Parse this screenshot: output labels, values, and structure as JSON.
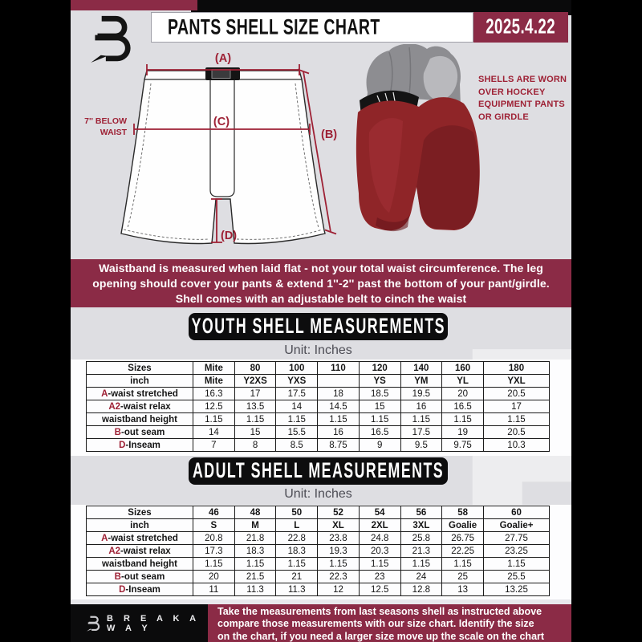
{
  "header": {
    "title": "PANTS SHELL SIZE CHART",
    "date": "2025.4.22"
  },
  "diagram": {
    "label_a": "(A)",
    "label_b": "(B)",
    "label_c": "(C)",
    "label_d": "(D)",
    "below_waist": [
      "7'' BELOW",
      "WAIST"
    ],
    "photo_caption": [
      "SHELLS ARE WORN",
      "OVER HOCKEY",
      "EQUIPMENT PANTS",
      "OR GIRDLE"
    ]
  },
  "notice": {
    "lines": [
      "Waistband is measured when laid flat - not your total waist circumference. The leg",
      "opening should cover your pants & extend 1''-2'' past the bottom of your pant/girdle.",
      "Shell comes with an adjustable belt to cinch the waist"
    ]
  },
  "watermark": "B",
  "youth": {
    "banner": "YOUTH SHELL MEASUREMENTS",
    "unit": "Unit: Inches",
    "table": {
      "rows": [
        {
          "prefix": "",
          "label": "Sizes",
          "bold": true,
          "values": [
            "Mite",
            "80",
            "100",
            "110",
            "120",
            "140",
            "160",
            "180"
          ]
        },
        {
          "prefix": "",
          "label": "inch",
          "bold": true,
          "values": [
            "Mite",
            "Y2XS",
            "YXS",
            "",
            "YS",
            "YM",
            "YL",
            "YXL"
          ]
        },
        {
          "prefix": "A",
          "label": "-waist stretched",
          "bold": false,
          "values": [
            "16.3",
            "17",
            "17.5",
            "18",
            "18.5",
            "19.5",
            "20",
            "20.5"
          ]
        },
        {
          "prefix": "A2",
          "label": "-waist relax",
          "bold": false,
          "values": [
            "12.5",
            "13.5",
            "14",
            "14.5",
            "15",
            "16",
            "16.5",
            "17"
          ]
        },
        {
          "prefix": "",
          "label": "waistband height",
          "bold": false,
          "values": [
            "1.15",
            "1.15",
            "1.15",
            "1.15",
            "1.15",
            "1.15",
            "1.15",
            "1.15"
          ]
        },
        {
          "prefix": "B",
          "label": "-out seam",
          "bold": false,
          "values": [
            "14",
            "15",
            "15.5",
            "16",
            "16.5",
            "17.5",
            "19",
            "20.5"
          ]
        },
        {
          "prefix": "D",
          "label": "-Inseam",
          "bold": false,
          "values": [
            "7",
            "8",
            "8.5",
            "8.75",
            "9",
            "9.5",
            "9.75",
            "10.3"
          ]
        }
      ]
    }
  },
  "adult": {
    "banner": "ADULT SHELL MEASUREMENTS",
    "unit": "Unit: Inches",
    "table": {
      "rows": [
        {
          "prefix": "",
          "label": "Sizes",
          "bold": true,
          "values": [
            "46",
            "48",
            "50",
            "52",
            "54",
            "56",
            "58",
            "60"
          ]
        },
        {
          "prefix": "",
          "label": "inch",
          "bold": true,
          "values": [
            "S",
            "M",
            "L",
            "XL",
            "2XL",
            "3XL",
            "Goalie",
            "Goalie+"
          ]
        },
        {
          "prefix": "A",
          "label": "-waist stretched",
          "bold": false,
          "values": [
            "20.8",
            "21.8",
            "22.8",
            "23.8",
            "24.8",
            "25.8",
            "26.75",
            "27.75"
          ]
        },
        {
          "prefix": "A2",
          "label": "-waist relax",
          "bold": false,
          "values": [
            "17.3",
            "18.3",
            "18.3",
            "19.3",
            "20.3",
            "21.3",
            "22.25",
            "23.25"
          ]
        },
        {
          "prefix": "",
          "label": "waistband height",
          "bold": false,
          "values": [
            "1.15",
            "1.15",
            "1.15",
            "1.15",
            "1.15",
            "1.15",
            "1.15",
            "1.15"
          ]
        },
        {
          "prefix": "B",
          "label": "-out seam",
          "bold": false,
          "values": [
            "20",
            "21.5",
            "21",
            "22.3",
            "23",
            "24",
            "25",
            "25.5"
          ]
        },
        {
          "prefix": "D",
          "label": "-Inseam",
          "bold": false,
          "values": [
            "11",
            "11.3",
            "11.3",
            "12",
            "12.5",
            "12.8",
            "13",
            "13.25"
          ]
        }
      ]
    }
  },
  "footer": {
    "brand": "B R E A K A W A Y",
    "lines": [
      "Take the measurements from last seasons shell as instructed above",
      "compare those measurements  with our size chart. Identify the size",
      "on the chart, if you need a larger size move up the scale on the chart"
    ]
  },
  "colors": {
    "maroon": "#8B2B46",
    "diagram_red": "#9E2135",
    "shell_red": "#8F2528",
    "banner_black": "#0D0D0E",
    "flyer_gray": "#DEDEE2"
  }
}
